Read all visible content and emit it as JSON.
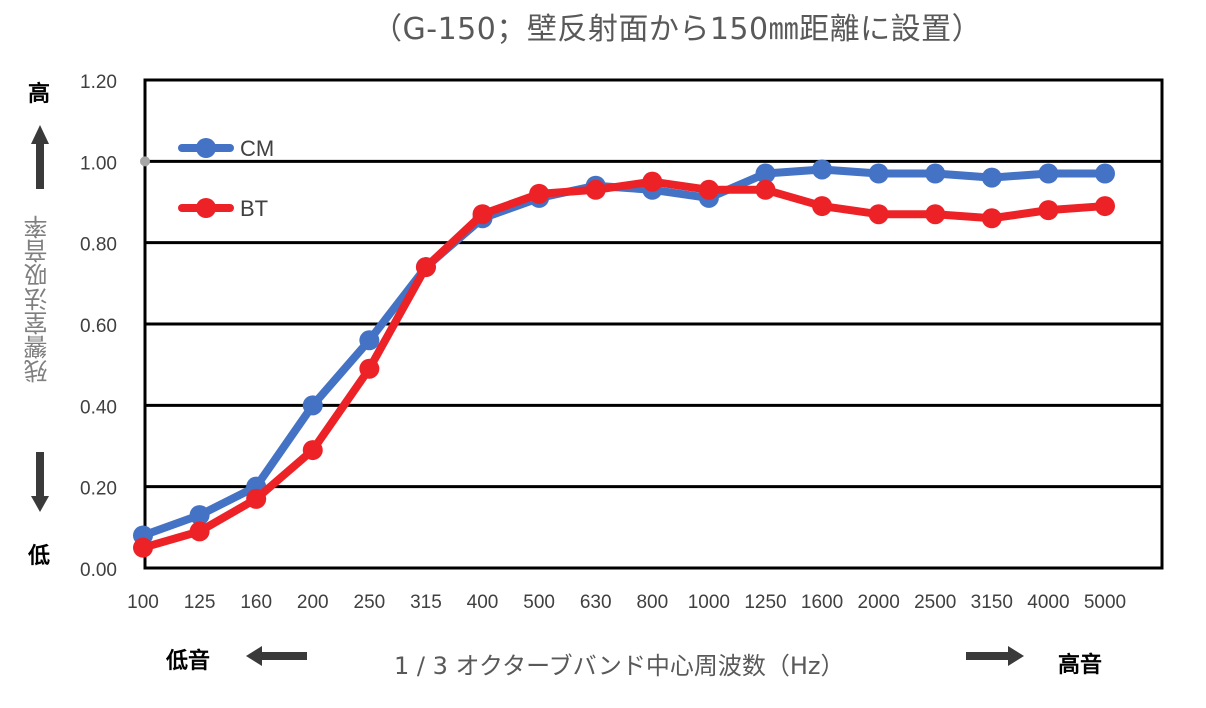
{
  "chart_data": {
    "type": "line",
    "title": "（G-150；壁反射面から150㎜距離に設置）",
    "xlabel": "1 / 3 オクターブバンド中心周波数（Hz）",
    "ylabel": "残響室法吸音率",
    "categories": [
      "100",
      "125",
      "160",
      "200",
      "250",
      "315",
      "400",
      "500",
      "630",
      "800",
      "1000",
      "1250",
      "1600",
      "2000",
      "2500",
      "3150",
      "4000",
      "5000"
    ],
    "ylim": [
      0,
      1.2
    ],
    "yticks": [
      "0.00",
      "0.20",
      "0.40",
      "0.60",
      "0.80",
      "1.00",
      "1.20"
    ],
    "grid": true,
    "legend_position": "top-left",
    "series": [
      {
        "name": "CM",
        "color": "#4472c4",
        "values": [
          0.08,
          0.13,
          0.2,
          0.4,
          0.56,
          0.74,
          0.86,
          0.91,
          0.94,
          0.93,
          0.91,
          0.97,
          0.98,
          0.97,
          0.97,
          0.96,
          0.97,
          0.97
        ]
      },
      {
        "name": "BT",
        "color": "#ed2227",
        "values": [
          0.05,
          0.09,
          0.17,
          0.29,
          0.49,
          0.74,
          0.87,
          0.92,
          0.93,
          0.95,
          0.93,
          0.93,
          0.89,
          0.87,
          0.87,
          0.86,
          0.88,
          0.89
        ]
      }
    ]
  },
  "annotations": {
    "y_high": "高",
    "y_low": "低",
    "x_low": "低音",
    "x_high": "高音"
  }
}
